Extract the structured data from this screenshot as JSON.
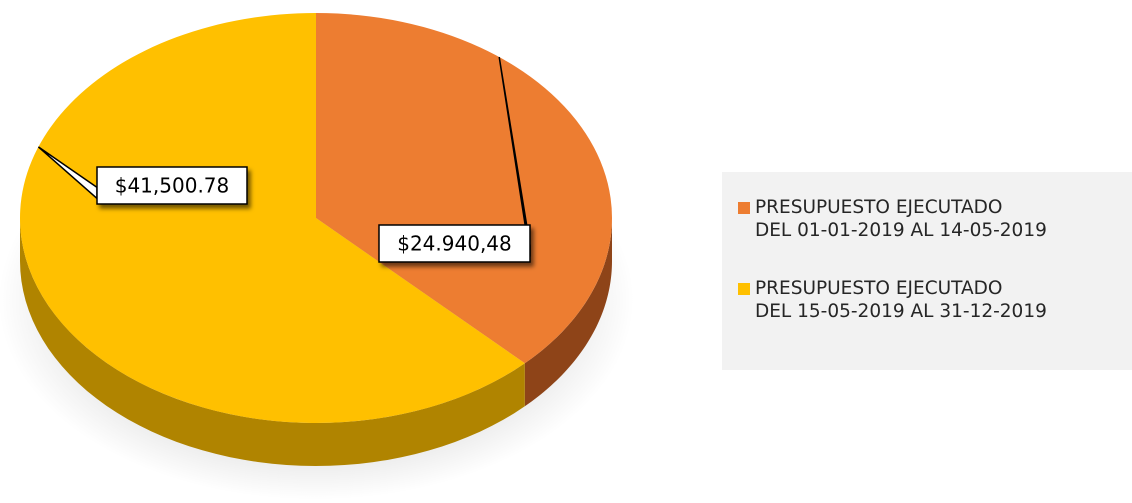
{
  "chart_data": {
    "type": "pie",
    "slices": [
      {
        "label_line1": "PRESUPUESTO EJECUTADO",
        "label_line2": "DEL 01-01-2019  AL 14-05-2019",
        "value": 24940.48,
        "display_value": "$24.940,48",
        "color": "#ed7d31",
        "shade_color": "#8e4418"
      },
      {
        "label_line1": "PRESUPUESTO EJECUTADO",
        "label_line2": "DEL 15-05-2019 AL 31-12-2019",
        "value": 41500.78,
        "display_value": "$41,500.78",
        "color": "#ffc000",
        "shade_color": "#b08400"
      }
    ],
    "legend_position": "right",
    "style": "3d"
  }
}
